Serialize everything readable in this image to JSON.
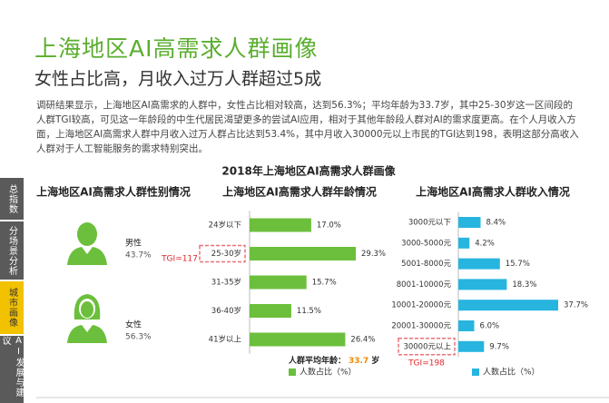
{
  "header": {
    "title": "上海地区AI高需求人群画像",
    "subtitle": "女性占比高，月收入过万人群超过5成"
  },
  "intro": "调研结果显示，上海地区AI高需求的人群中，女性占比相对较高，达到56.3%；平均年龄为33.7岁，其中25-30岁这一区间段的人群TGI较高，可见这一年龄段的中生代居民渴望更多的尝试AI应用，相对于其他年龄段人群对AI的需求度更高。在个人月收入方面，上海地区AI高需求人群中月收入过万人群占比达到53.4%，其中月收入30000元以上市民的TGI达到198，表明这部分高收入人群对于人工智能服务的需求特别突出。",
  "sidebar": {
    "tabs": [
      "总指数",
      "分场景分析",
      "城市画像",
      "AI发展与建议"
    ],
    "active": "城市画像"
  },
  "figure_title": "2018年上海地区AI高需求人群画像",
  "gender": {
    "title": "上海地区AI高需求人群性别情况",
    "items": [
      {
        "label": "男性",
        "value": "43.7%"
      },
      {
        "label": "女性",
        "value": "56.3%"
      }
    ]
  },
  "chart_data": [
    {
      "type": "hbar",
      "title": "上海地区AI高需求人群年龄情况",
      "categories": [
        "24岁以下",
        "25-30岁",
        "31-35岁",
        "36-40岁",
        "41岁以上"
      ],
      "series": [
        {
          "name": "人数占比（%）",
          "color": "#6cbf3c",
          "values": [
            17.0,
            29.3,
            15.7,
            11.5,
            26.4
          ],
          "value_labels": [
            "17.0%",
            "29.3%",
            "15.7%",
            "11.5%",
            "26.4%"
          ]
        }
      ],
      "annotations": [
        {
          "text": "TGI=117"
        }
      ],
      "average": {
        "label": "人群平均年龄：",
        "value": "33.7",
        "unit": "岁"
      }
    },
    {
      "type": "hbar",
      "title": "上海地区AI高需求人群收入情况",
      "categories": [
        "3000元以下",
        "3000-5000元",
        "5001-8000元",
        "8001-10000元",
        "10001-20000元",
        "20001-30000元",
        "30000元以上"
      ],
      "series": [
        {
          "name": "人数占比（%）",
          "color": "#27b5df",
          "values": [
            8.4,
            4.2,
            15.7,
            18.3,
            37.7,
            6.0,
            9.7
          ],
          "value_labels": [
            "8.4%",
            "4.2%",
            "15.7%",
            "18.3%",
            "37.7%",
            "6.0%",
            "9.7%"
          ]
        }
      ],
      "annotations": [
        {
          "text": "TGI=198"
        }
      ]
    }
  ]
}
